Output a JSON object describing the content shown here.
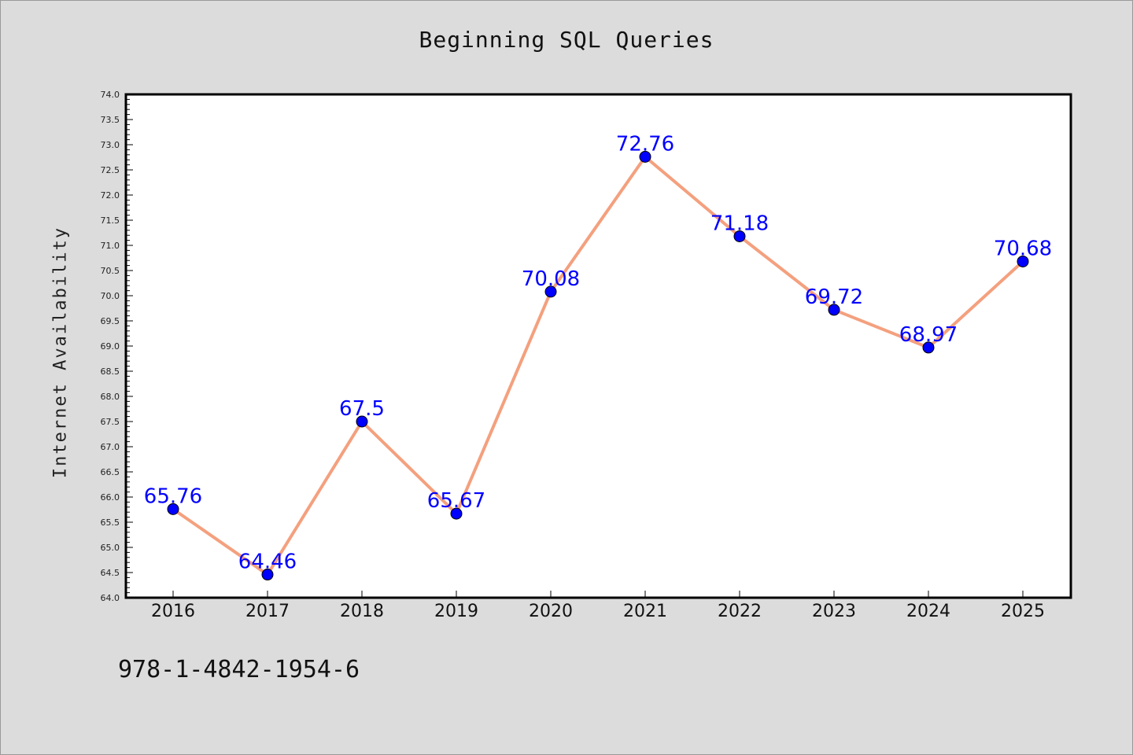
{
  "chart_data": {
    "type": "line",
    "title": "Beginning SQL Queries",
    "xlabel": "",
    "ylabel": "Internet Availability",
    "categories": [
      "2016",
      "2017",
      "2018",
      "2019",
      "2020",
      "2021",
      "2022",
      "2023",
      "2024",
      "2025"
    ],
    "series": [
      {
        "values": [
          65.76,
          64.46,
          67.5,
          65.67,
          70.08,
          72.76,
          71.18,
          69.72,
          68.97,
          70.68
        ]
      }
    ],
    "data_labels": [
      "65.76",
      "64.46",
      "67.5",
      "65.67",
      "70.08",
      "72.76",
      "71.18",
      "69.72",
      "68.97",
      "70.68"
    ],
    "ylim": [
      64.0,
      74.0
    ],
    "yticks": [
      "64.0",
      "64.5",
      "65.0",
      "65.5",
      "66.0",
      "66.5",
      "67.0",
      "67.5",
      "68.0",
      "68.5",
      "69.0",
      "69.5",
      "70.0",
      "70.5",
      "71.0",
      "71.5",
      "72.0",
      "72.5",
      "73.0",
      "73.5",
      "74.0"
    ],
    "grid": false,
    "line_color": "#f4a07e",
    "marker_color": "#0000ff",
    "label_color": "#0000ff"
  },
  "footnote": "978-1-4842-1954-6"
}
